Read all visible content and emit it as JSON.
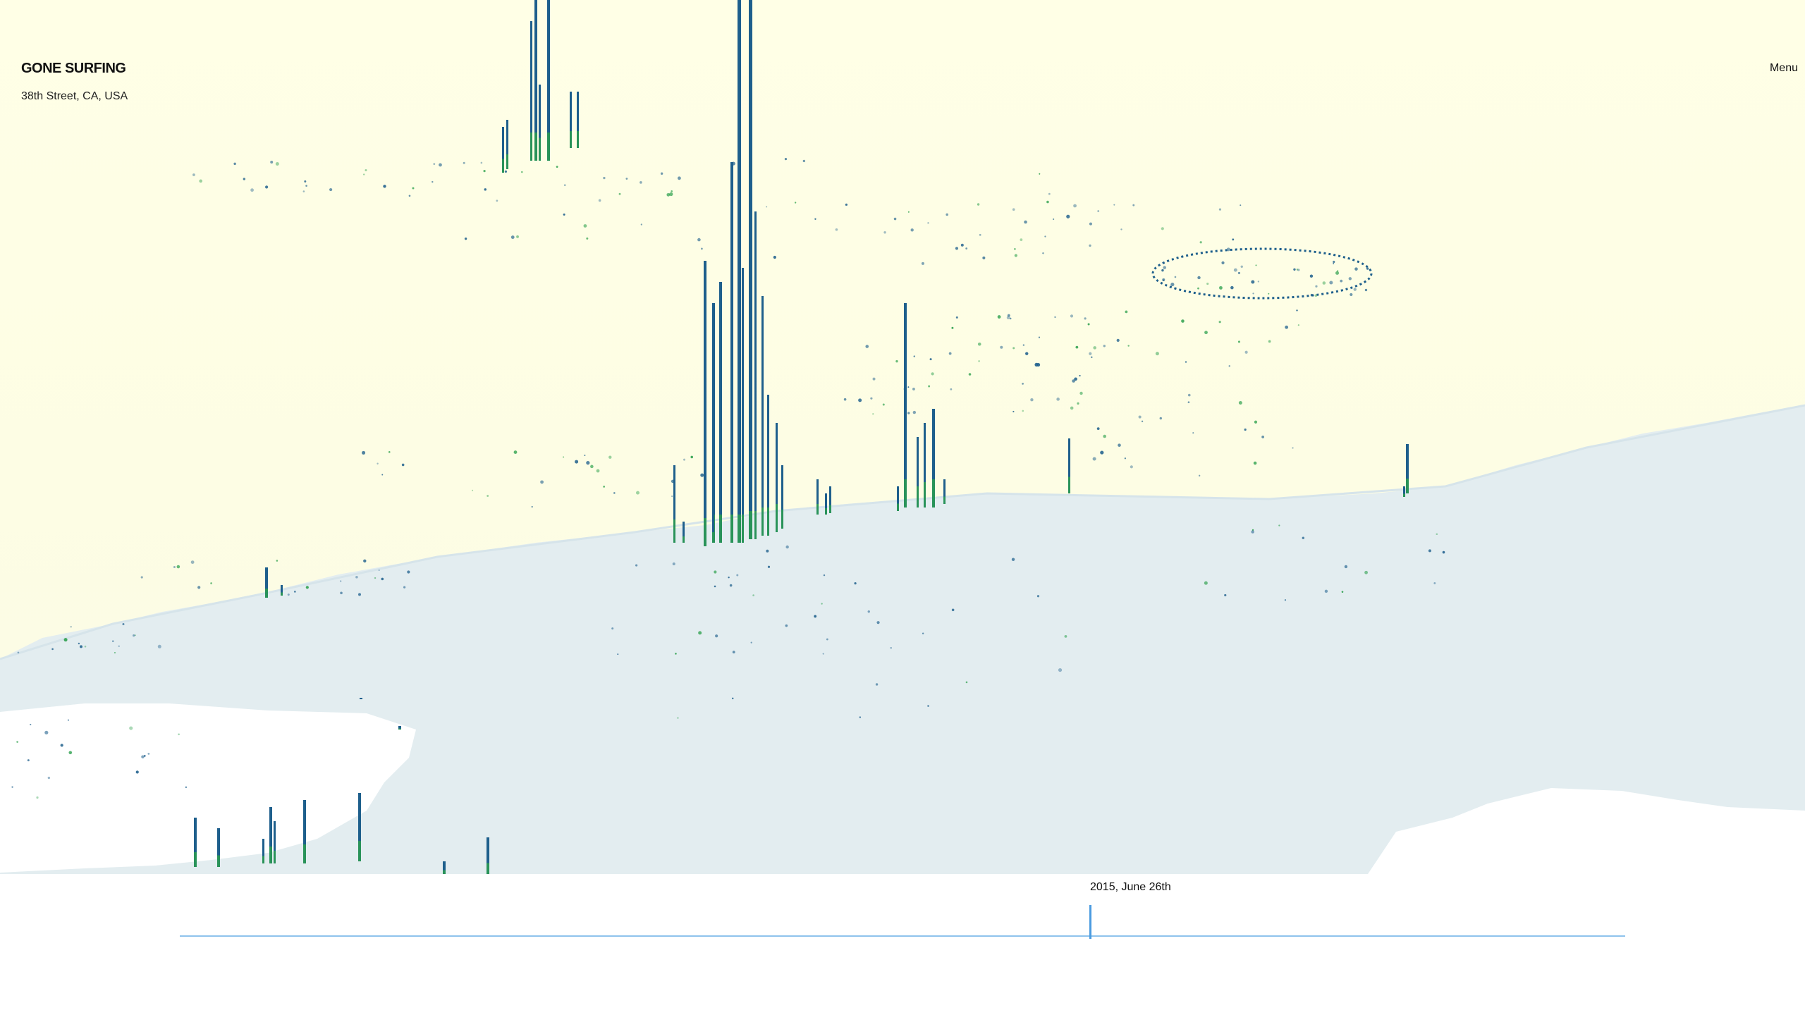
{
  "header": {
    "brand": "GONE SURFING",
    "location": "38th Street, CA, USA",
    "menu_label": "Menu"
  },
  "timeline": {
    "current_date": "2015, June 26th"
  },
  "colors": {
    "sky": "#ffffe6",
    "land": "#e3edf0",
    "bar_primary": "#1e5f8c",
    "bar_accent": "#2ca04c",
    "track": "#8fc3ec",
    "handle": "#4a9be0"
  },
  "icons": {
    "timeline_handle": "slider-handle"
  }
}
